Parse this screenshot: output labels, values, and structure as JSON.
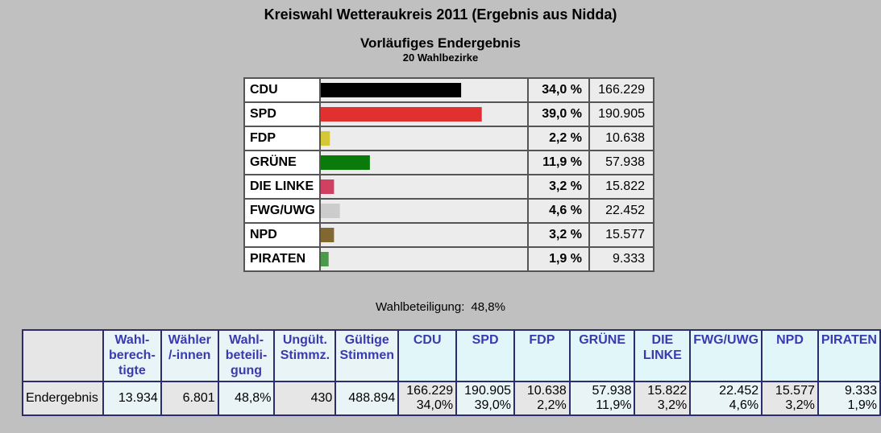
{
  "header": {
    "title": "Kreiswahl Wetteraukreis 2011 (Ergebnis aus Nidda)",
    "subtitle": "Vorläufiges Endergebnis",
    "districts": "20 Wahlbezirke"
  },
  "chart_data": {
    "type": "bar",
    "orientation": "horizontal",
    "categories": [
      "CDU",
      "SPD",
      "FDP",
      "GRÜNE",
      "DIE LINKE",
      "FWG/UWG",
      "NPD",
      "PIRATEN"
    ],
    "values": [
      34.0,
      39.0,
      2.2,
      11.9,
      3.2,
      4.6,
      3.2,
      1.9
    ],
    "pct_labels": [
      "34,0 %",
      "39,0 %",
      "2,2 %",
      "11,9 %",
      "3,2 %",
      "4,6 %",
      "3,2 %",
      "1,9 %"
    ],
    "votes": [
      "166.229",
      "190.905",
      "10.638",
      "57.938",
      "15.822",
      "22.452",
      "15.577",
      "9.333"
    ],
    "colors": [
      "#000000",
      "#e03030",
      "#d4c838",
      "#0a7a0a",
      "#d04060",
      "#cccccc",
      "#806830",
      "#4a9a4a"
    ],
    "xlim": [
      0,
      50
    ]
  },
  "turnout": {
    "label": "Wahlbeteiligung:",
    "value": "48,8%"
  },
  "summary": {
    "headers": {
      "eligible": [
        "Wahl-",
        "berech-",
        "tigte"
      ],
      "voters": [
        "Wähler",
        "/-innen"
      ],
      "turnout": [
        "Wahl-",
        "beteili-",
        "gung"
      ],
      "invalid": [
        "Ungült.",
        "Stimmz."
      ],
      "valid": [
        "Gültige",
        "Stimmen"
      ],
      "parties": [
        [
          "CDU"
        ],
        [
          "SPD"
        ],
        [
          "FDP"
        ],
        [
          "GRÜNE"
        ],
        [
          "DIE",
          "LINKE"
        ],
        [
          "FWG/UWG"
        ],
        [
          "NPD"
        ],
        [
          "PIRATEN"
        ]
      ]
    },
    "row": {
      "label": "Endergebnis",
      "eligible": "13.934",
      "voters": "6.801",
      "turnout": "48,8%",
      "invalid": "430",
      "valid": "488.894",
      "parties": [
        {
          "votes": "166.229",
          "pct": "34,0%"
        },
        {
          "votes": "190.905",
          "pct": "39,0%"
        },
        {
          "votes": "10.638",
          "pct": "2,2%"
        },
        {
          "votes": "57.938",
          "pct": "11,9%"
        },
        {
          "votes": "15.822",
          "pct": "3,2%"
        },
        {
          "votes": "22.452",
          "pct": "4,6%"
        },
        {
          "votes": "15.577",
          "pct": "3,2%"
        },
        {
          "votes": "9.333",
          "pct": "1,9%"
        }
      ]
    }
  }
}
